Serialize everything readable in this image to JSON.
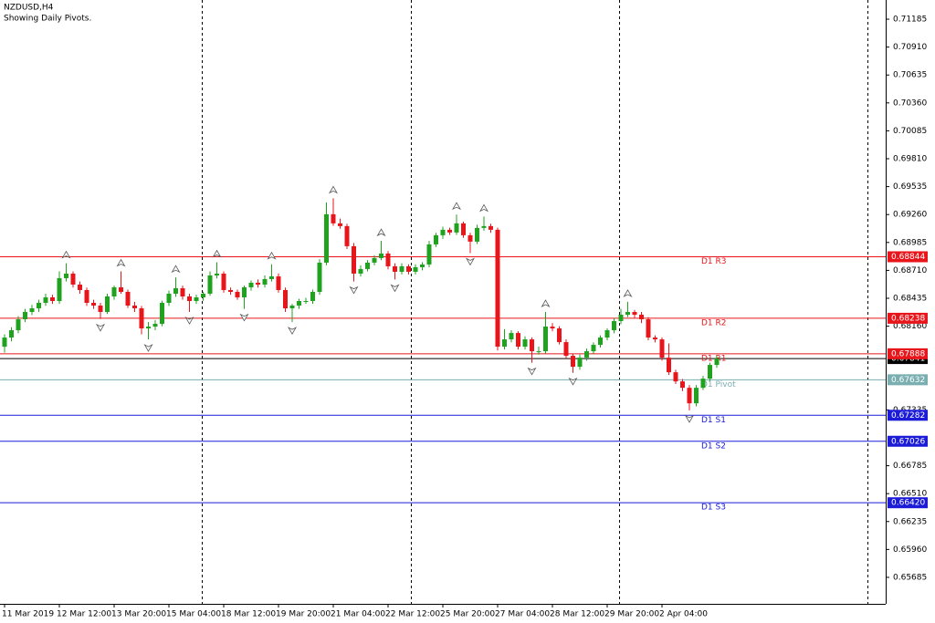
{
  "chart_data": {
    "type": "candlestick",
    "title": "NZDUSD,H4",
    "subtitle": "Showing Daily Pivots.",
    "categories": [
      "11 Mar 2019",
      null,
      null,
      null,
      null,
      null,
      null,
      null,
      "12 Mar 12:00",
      null,
      null,
      null,
      null,
      null,
      null,
      null,
      "13 Mar 20:00",
      null,
      null,
      null,
      null,
      null,
      null,
      null,
      "15 Mar 04:00",
      null,
      null,
      null,
      null,
      null,
      null,
      null,
      "18 Mar 12:00",
      null,
      null,
      null,
      null,
      null,
      null,
      null,
      "19 Mar 20:00",
      null,
      null,
      null,
      null,
      null,
      null,
      null,
      "21 Mar 04:00",
      null,
      null,
      null,
      null,
      null,
      null,
      null,
      "22 Mar 12:00",
      null,
      null,
      null,
      null,
      null,
      null,
      null,
      "25 Mar 20:00",
      null,
      null,
      null,
      null,
      null,
      null,
      null,
      "27 Mar 04:00",
      null,
      null,
      null,
      null,
      null,
      null,
      null,
      "28 Mar 12:00",
      null,
      null,
      null,
      null,
      null,
      null,
      null,
      "29 Mar 20:00",
      null,
      null,
      null,
      null,
      null,
      null,
      null,
      "2 Apr 04:00",
      null,
      null,
      null,
      null,
      null,
      null,
      null,
      null
    ],
    "open": [
      0.67958,
      0.68048,
      0.6812,
      0.68228,
      0.683,
      0.68336,
      0.6839,
      0.68444,
      0.68408,
      0.68633,
      0.68678,
      0.6857,
      0.68516,
      0.6839,
      0.68363,
      0.683,
      0.68453,
      0.68543,
      0.68498,
      0.68363,
      0.68336,
      0.68138,
      0.68156,
      0.68183,
      0.6839,
      0.6848,
      0.68534,
      0.68453,
      0.68408,
      0.68444,
      0.6848,
      0.6866,
      0.68678,
      0.68516,
      0.68498,
      0.68444,
      0.68543,
      0.68588,
      0.6857,
      0.68624,
      0.68651,
      0.68516,
      0.68336,
      0.68363,
      0.68408,
      0.68408,
      0.68498,
      0.68786,
      0.69263,
      0.69173,
      0.69146,
      0.68948,
      0.68678,
      0.68723,
      0.68786,
      0.68831,
      0.68876,
      0.6875,
      0.68696,
      0.6875,
      0.68696,
      0.68741,
      0.68768,
      0.68966,
      0.69056,
      0.6911,
      0.69083,
      0.69173,
      0.69056,
      0.68993,
      0.69128,
      0.69146,
      0.6911,
      0.67958,
      0.6803,
      0.68093,
      0.67958,
      0.6803,
      0.67913,
      0.67913,
      0.68156,
      0.68138,
      0.68003,
      0.67868,
      0.6776,
      0.6785,
      0.67913,
      0.67976,
      0.68048,
      0.6812,
      0.6821,
      0.68273,
      0.683,
      0.68273,
      0.68228,
      0.68048,
      0.6803,
      0.6785,
      0.67706,
      0.67616,
      0.67553,
      0.674,
      0.67553,
      0.67643,
      0.67778
    ],
    "high": [
      0.6808,
      0.6815,
      0.6826,
      0.6833,
      0.6837,
      0.6842,
      0.6848,
      0.6847,
      0.687,
      0.6878,
      0.687,
      0.686,
      0.6854,
      0.6842,
      0.6839,
      0.6848,
      0.6856,
      0.687,
      0.6852,
      0.684,
      0.6836,
      0.682,
      0.6822,
      0.6841,
      0.6851,
      0.6864,
      0.6856,
      0.6848,
      0.6847,
      0.685,
      0.687,
      0.6879,
      0.687,
      0.6854,
      0.6852,
      0.6856,
      0.6861,
      0.6862,
      0.6866,
      0.6877,
      0.6868,
      0.6854,
      0.6838,
      0.6843,
      0.6844,
      0.6852,
      0.6882,
      0.6938,
      0.6942,
      0.6922,
      0.6917,
      0.6898,
      0.6876,
      0.6881,
      0.6886,
      0.69,
      0.689,
      0.6878,
      0.6878,
      0.6877,
      0.6877,
      0.6879,
      0.69,
      0.6908,
      0.6914,
      0.6913,
      0.6926,
      0.6919,
      0.6908,
      0.6916,
      0.6924,
      0.6917,
      0.6913,
      0.6813,
      0.6812,
      0.6811,
      0.6806,
      0.6805,
      0.6796,
      0.683,
      0.6819,
      0.6816,
      0.6803,
      0.6789,
      0.6788,
      0.6794,
      0.68,
      0.6807,
      0.6814,
      0.6824,
      0.6833,
      0.684,
      0.6832,
      0.683,
      0.6825,
      0.6807,
      0.6805,
      0.6799,
      0.6773,
      0.6764,
      0.6758,
      0.6758,
      0.6767,
      0.678,
      0.6787
    ],
    "low": [
      0.679,
      0.6801,
      0.6809,
      0.682,
      0.6827,
      0.683,
      0.6836,
      0.6838,
      0.6838,
      0.686,
      0.6854,
      0.6848,
      0.6836,
      0.6833,
      0.6823,
      0.6828,
      0.6842,
      0.6848,
      0.6834,
      0.683,
      0.6808,
      0.6803,
      0.6812,
      0.6816,
      0.6836,
      0.6845,
      0.6842,
      0.683,
      0.6838,
      0.6841,
      0.6846,
      0.6863,
      0.6849,
      0.6847,
      0.6842,
      0.6833,
      0.6851,
      0.6854,
      0.6854,
      0.686,
      0.6849,
      0.683,
      0.682,
      0.6833,
      0.6838,
      0.6838,
      0.6847,
      0.6876,
      0.6915,
      0.6912,
      0.6892,
      0.686,
      0.6865,
      0.687,
      0.6876,
      0.6881,
      0.6872,
      0.6862,
      0.6867,
      0.6867,
      0.6867,
      0.6871,
      0.6874,
      0.6894,
      0.6902,
      0.6906,
      0.6906,
      0.6903,
      0.6888,
      0.6897,
      0.691,
      0.6908,
      0.6792,
      0.6793,
      0.68,
      0.6793,
      0.6793,
      0.678,
      0.6788,
      0.6789,
      0.6811,
      0.6798,
      0.6784,
      0.677,
      0.6773,
      0.6782,
      0.6789,
      0.6795,
      0.6802,
      0.6809,
      0.6818,
      0.6825,
      0.6824,
      0.6819,
      0.6802,
      0.68,
      0.6782,
      0.6768,
      0.6759,
      0.6752,
      0.6733,
      0.6737,
      0.6753,
      0.6762,
      0.6775
    ],
    "close": [
      0.68048,
      0.6812,
      0.68228,
      0.683,
      0.68336,
      0.6839,
      0.68444,
      0.68408,
      0.68633,
      0.68678,
      0.6857,
      0.68516,
      0.6839,
      0.68363,
      0.683,
      0.68453,
      0.68543,
      0.68498,
      0.68363,
      0.68336,
      0.68138,
      0.68156,
      0.68183,
      0.6839,
      0.6848,
      0.68534,
      0.68453,
      0.68408,
      0.68444,
      0.6848,
      0.6866,
      0.68678,
      0.68516,
      0.68498,
      0.68444,
      0.68543,
      0.68588,
      0.6857,
      0.68624,
      0.68651,
      0.68516,
      0.68336,
      0.68363,
      0.68408,
      0.68408,
      0.68498,
      0.68786,
      0.69263,
      0.69173,
      0.69146,
      0.68948,
      0.68678,
      0.68723,
      0.68786,
      0.68831,
      0.68876,
      0.6875,
      0.68696,
      0.6875,
      0.68696,
      0.68741,
      0.68768,
      0.68966,
      0.69056,
      0.6911,
      0.69083,
      0.69173,
      0.69056,
      0.68993,
      0.69128,
      0.69146,
      0.6911,
      0.67958,
      0.6803,
      0.68093,
      0.67958,
      0.6803,
      0.67913,
      0.67913,
      0.68156,
      0.68138,
      0.68003,
      0.67868,
      0.6776,
      0.6785,
      0.67913,
      0.67976,
      0.68048,
      0.6812,
      0.6821,
      0.68273,
      0.683,
      0.68273,
      0.68228,
      0.68048,
      0.6803,
      0.6785,
      0.67706,
      0.67616,
      0.67553,
      0.674,
      0.67553,
      0.67643,
      0.67778,
      0.67841
    ],
    "up_color": "#1fa31f",
    "down_color": "#e8161b",
    "fractals_up": [
      9,
      17,
      25,
      31,
      39,
      48,
      55,
      66,
      70,
      79,
      91
    ],
    "fractals_down": [
      14,
      21,
      27,
      35,
      42,
      51,
      57,
      68,
      77,
      83,
      100
    ],
    "pivots": [
      {
        "name": "D1 R3",
        "value": 0.68844,
        "color": "#e8161b"
      },
      {
        "name": "D1 R2",
        "value": 0.68238,
        "color": "#e8161b"
      },
      {
        "name": "D1 R1",
        "value": 0.67888,
        "color": "#e8161b"
      },
      {
        "name": "D1 Pivot",
        "value": 0.67632,
        "color": "#7aaeb0"
      },
      {
        "name": "D1 S1",
        "value": 0.67282,
        "color": "#1b1bd8"
      },
      {
        "name": "D1 S2",
        "value": 0.67026,
        "color": "#1b1bd8"
      },
      {
        "name": "D1 S3",
        "value": 0.6642,
        "value_label": "0.66420",
        "color": "#1b1bd8"
      }
    ],
    "bid": 0.67841,
    "ylim": [
      0.65424,
      0.71374
    ],
    "yticks": [
      0.71185,
      {
        "value": 0.7091,
        "label": "0.70910"
      },
      0.70635,
      {
        "value": 0.7036,
        "label": "0.70360"
      },
      0.70085,
      {
        "value": 0.6981,
        "label": "0.69810"
      },
      0.69535,
      {
        "value": 0.6926,
        "label": "0.69260"
      },
      0.68985,
      {
        "value": 0.6871,
        "label": "0.68710"
      },
      0.68435,
      {
        "value": 0.6816,
        "label": "0.68160"
      },
      0.67335,
      0.66785,
      {
        "value": 0.6651,
        "label": "0.66510"
      },
      0.66235,
      {
        "value": 0.6596,
        "label": "0.65960"
      },
      0.65685
    ]
  }
}
